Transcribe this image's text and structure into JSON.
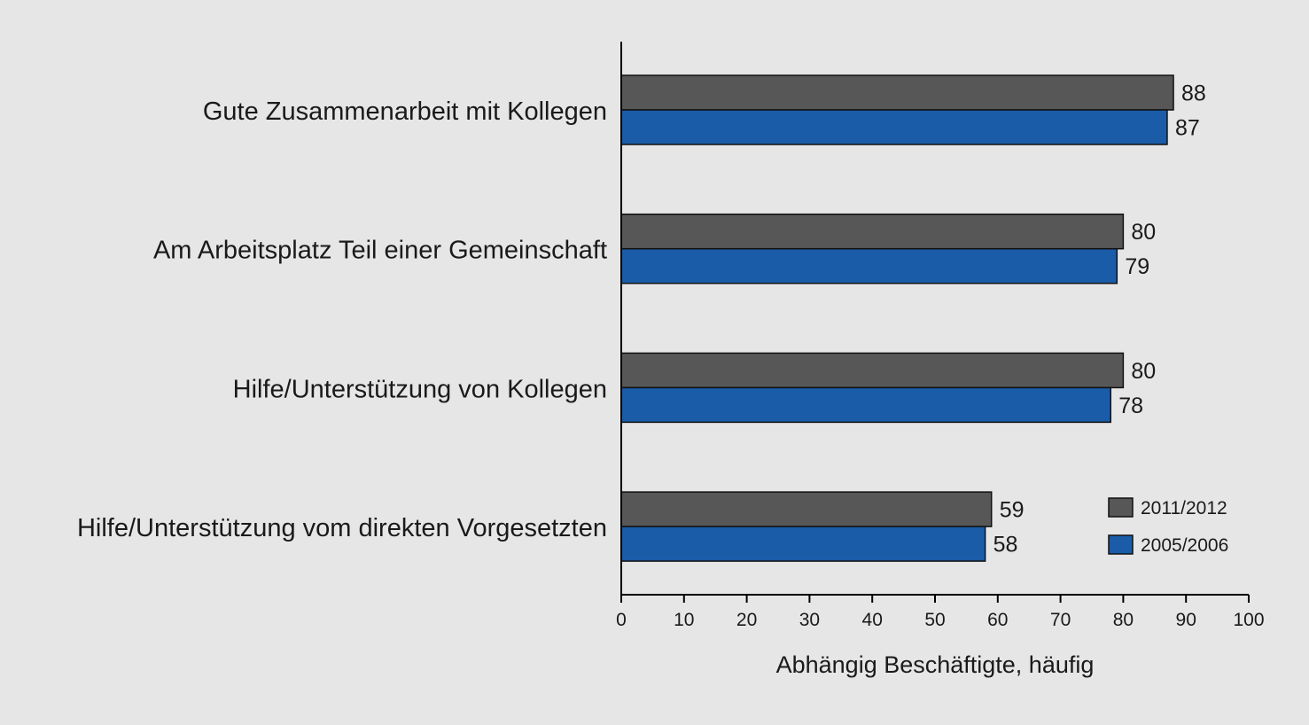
{
  "chart_data": {
    "type": "bar",
    "orientation": "horizontal",
    "categories": [
      "Gute Zusammenarbeit mit Kollegen",
      "Am Arbeitsplatz Teil einer Gemeinschaft",
      "Hilfe/Unterstützung von Kollegen",
      "Hilfe/Unterstützung vom direkten Vorgesetzten"
    ],
    "series": [
      {
        "name": "2011/2012",
        "color": "#575757",
        "values": [
          88,
          80,
          80,
          59
        ]
      },
      {
        "name": "2005/2006",
        "color": "#1a5ca8",
        "values": [
          87,
          79,
          78,
          58
        ]
      }
    ],
    "xlabel": "Abhängig Beschäftigte, häufig",
    "xlim": [
      0,
      100
    ],
    "xticks": [
      "0",
      "10",
      "20",
      "30",
      "40",
      "50",
      "60",
      "70",
      "80",
      "90",
      "100"
    ],
    "data_labels": true,
    "grid": false,
    "legend_position": "bottom-right"
  }
}
